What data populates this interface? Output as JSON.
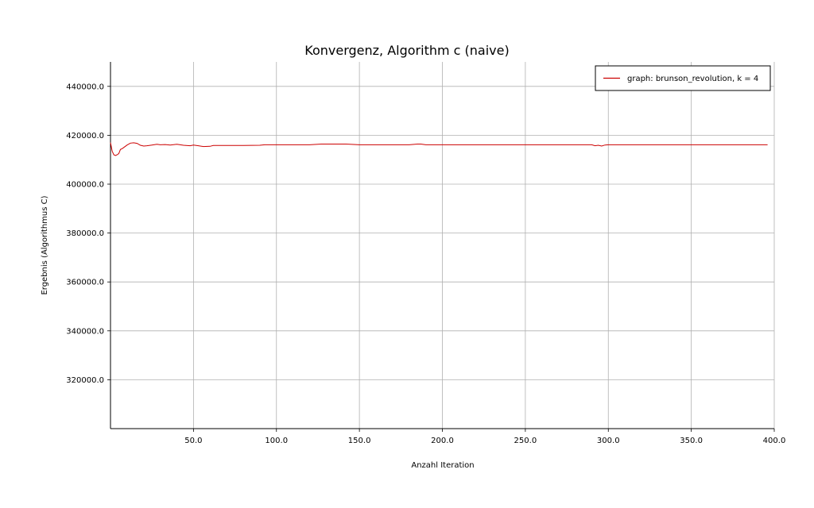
{
  "chart_data": {
    "type": "line",
    "title": "Konvergenz, Algorithm c (naive)",
    "xlabel": "Anzahl Iteration",
    "ylabel": "Ergebnis (Algorithmus C)",
    "xlim": [
      0,
      400
    ],
    "ylim": [
      300000,
      450000
    ],
    "xticks": [
      "50.0",
      "100.0",
      "150.0",
      "200.0",
      "250.0",
      "300.0",
      "350.0",
      "400.0"
    ],
    "yticks": [
      "320000.0",
      "340000.0",
      "360000.0",
      "380000.0",
      "400000.0",
      "420000.0",
      "440000.0"
    ],
    "grid": true,
    "legend_position": "top-right",
    "series": [
      {
        "name": "graph: brunson_revolution, k = 4",
        "color": "#cc0000",
        "x": [
          0,
          1,
          2,
          3,
          4,
          5,
          6,
          7,
          8,
          10,
          12,
          14,
          16,
          18,
          20,
          22,
          25,
          28,
          30,
          33,
          36,
          40,
          44,
          48,
          50,
          53,
          56,
          60,
          62,
          70,
          80,
          90,
          93,
          100,
          110,
          120,
          127,
          135,
          142,
          150,
          160,
          170,
          180,
          185,
          187,
          190,
          200,
          220,
          250,
          270,
          290,
          292,
          294,
          296,
          298,
          300,
          320,
          350,
          380,
          396
        ],
        "y": [
          417000,
          413500,
          412000,
          411700,
          412000,
          412500,
          414200,
          414500,
          415000,
          416000,
          416800,
          416900,
          416700,
          415900,
          415600,
          415700,
          416000,
          416300,
          416100,
          416200,
          416000,
          416300,
          415900,
          415700,
          416000,
          415700,
          415400,
          415500,
          415800,
          415800,
          415800,
          415900,
          416100,
          416100,
          416100,
          416100,
          416400,
          416400,
          416400,
          416100,
          416100,
          416100,
          416100,
          416400,
          416400,
          416100,
          416100,
          416100,
          416100,
          416100,
          416100,
          415700,
          415900,
          415600,
          416000,
          416100,
          416100,
          416100,
          416100,
          416100
        ]
      }
    ]
  }
}
